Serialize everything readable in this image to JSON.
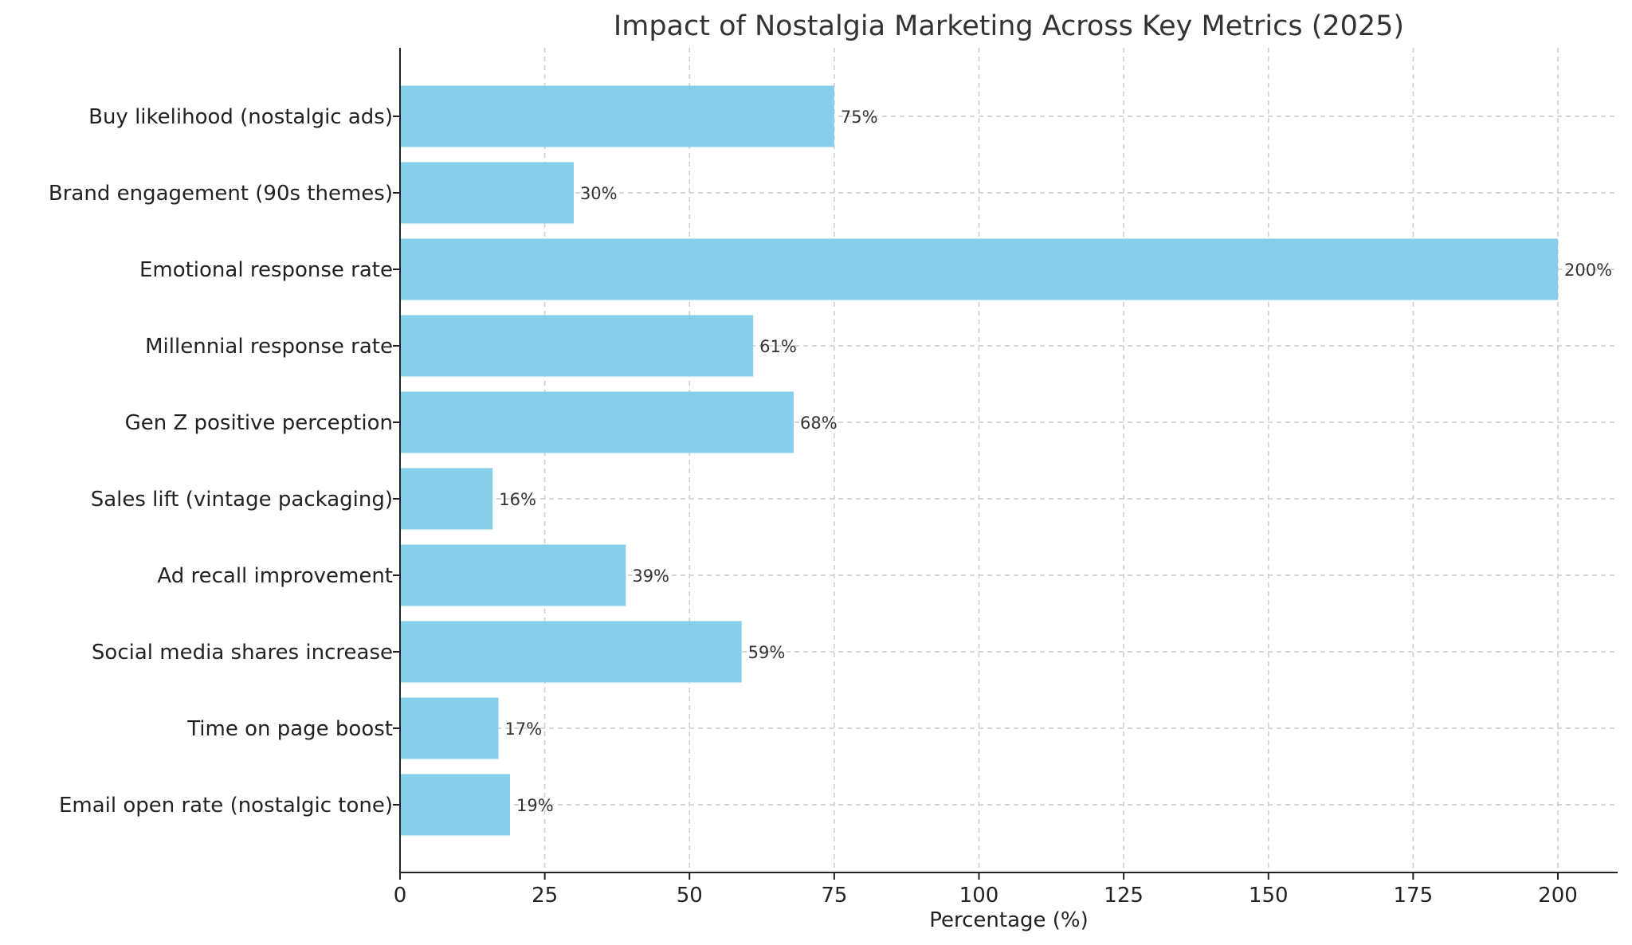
{
  "chart_data": {
    "type": "bar",
    "orientation": "horizontal",
    "title": "Impact of Nostalgia Marketing Across Key Metrics (2025)",
    "xlabel": "Percentage (%)",
    "ylabel": "",
    "xlim": [
      0,
      210
    ],
    "xticks": [
      0,
      25,
      50,
      75,
      100,
      125,
      150,
      175,
      200
    ],
    "grid": true,
    "bar_color": "#87CEEB",
    "categories": [
      "Buy likelihood (nostalgic ads)",
      "Brand engagement (90s themes)",
      "Emotional response rate",
      "Millennial response rate",
      "Gen Z positive perception",
      "Sales lift (vintage packaging)",
      "Ad recall improvement",
      "Social media shares increase",
      "Time on page boost",
      "Email open rate (nostalgic tone)"
    ],
    "values": [
      75,
      30,
      200,
      61,
      68,
      16,
      39,
      59,
      17,
      19
    ],
    "value_labels": [
      "75%",
      "30%",
      "200%",
      "61%",
      "68%",
      "16%",
      "39%",
      "59%",
      "17%",
      "19%"
    ]
  }
}
